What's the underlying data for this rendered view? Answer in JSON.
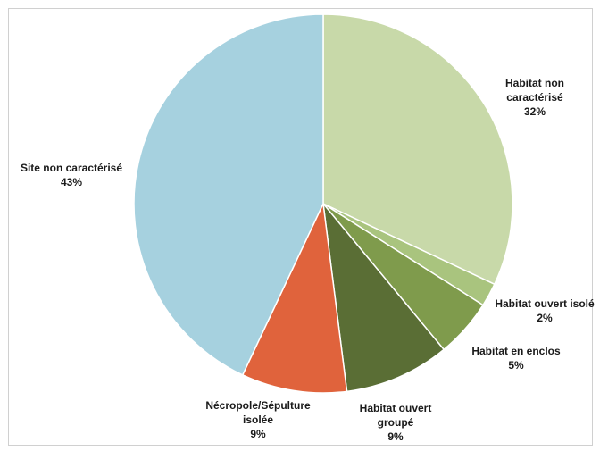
{
  "chart_data": {
    "type": "pie",
    "title": "",
    "start_angle_deg": 0,
    "direction": "clockwise",
    "slices": [
      {
        "name_lines": [
          "Habitat non",
          "caractérisé"
        ],
        "value": 32,
        "value_label": "32%",
        "color": "#c8d9a9"
      },
      {
        "name_lines": [
          "Habitat ouvert isolé"
        ],
        "value": 2,
        "value_label": "2%",
        "color": "#a9c47e"
      },
      {
        "name_lines": [
          "Habitat en enclos"
        ],
        "value": 5,
        "value_label": "5%",
        "color": "#7f9b4c"
      },
      {
        "name_lines": [
          "Habitat ouvert",
          "groupé"
        ],
        "value": 9,
        "value_label": "9%",
        "color": "#5a6e35"
      },
      {
        "name_lines": [
          "Nécropole/Sépulture",
          "isolée"
        ],
        "value": 9,
        "value_label": "9%",
        "color": "#e0633c"
      },
      {
        "name_lines": [
          "Site non caractérisé"
        ],
        "value": 43,
        "value_label": "43%",
        "color": "#a6d1df"
      }
    ],
    "legend": "none",
    "labels": "outside"
  }
}
